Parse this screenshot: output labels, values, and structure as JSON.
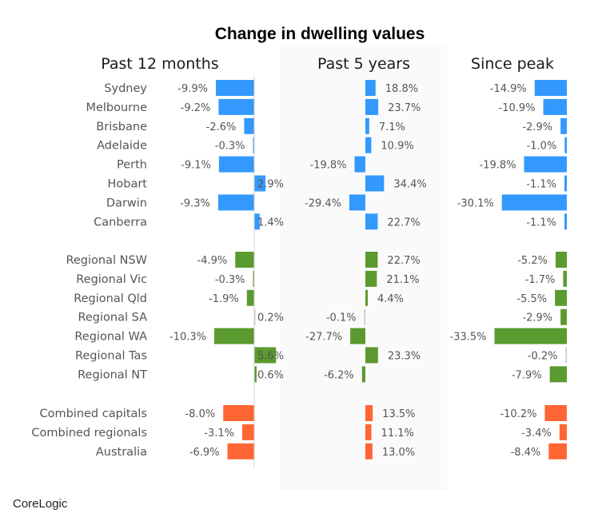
{
  "source_label": "CoreLogic",
  "chart_data": {
    "type": "bar",
    "orientation": "horizontal",
    "title": "Change in dwelling values",
    "unit": "%",
    "panels": [
      {
        "key": "past12",
        "title": "Past 12 months"
      },
      {
        "key": "past5",
        "title": "Past 5 years"
      },
      {
        "key": "peak",
        "title": "Since peak"
      }
    ],
    "colors": {
      "capitals": "#3399ff",
      "regional": "#5b9a2f",
      "aggregate": "#ff6633"
    },
    "groups": [
      {
        "key": "capitals",
        "rows": [
          {
            "label": "Sydney",
            "past12": -9.9,
            "past5": 18.8,
            "peak": -14.9
          },
          {
            "label": "Melbourne",
            "past12": -9.2,
            "past5": 23.7,
            "peak": -10.9
          },
          {
            "label": "Brisbane",
            "past12": -2.6,
            "past5": 7.1,
            "peak": -2.9
          },
          {
            "label": "Adelaide",
            "past12": -0.3,
            "past5": 10.9,
            "peak": -1.0
          },
          {
            "label": "Perth",
            "past12": -9.1,
            "past5": -19.8,
            "peak": -19.8
          },
          {
            "label": "Hobart",
            "past12": 2.9,
            "past5": 34.4,
            "peak": -1.1
          },
          {
            "label": "Darwin",
            "past12": -9.3,
            "past5": -29.4,
            "peak": -30.1
          },
          {
            "label": "Canberra",
            "past12": 1.4,
            "past5": 22.7,
            "peak": -1.1
          }
        ]
      },
      {
        "key": "regional",
        "rows": [
          {
            "label": "Regional NSW",
            "past12": -4.9,
            "past5": 22.7,
            "peak": -5.2
          },
          {
            "label": "Regional Vic",
            "past12": -0.3,
            "past5": 21.1,
            "peak": -1.7
          },
          {
            "label": "Regional Qld",
            "past12": -1.9,
            "past5": 4.4,
            "peak": -5.5
          },
          {
            "label": "Regional SA",
            "past12": 0.2,
            "past5": -0.1,
            "peak": -2.9
          },
          {
            "label": "Regional WA",
            "past12": -10.3,
            "past5": -27.7,
            "peak": -33.5
          },
          {
            "label": "Regional Tas",
            "past12": 5.6,
            "past5": 23.3,
            "peak": -0.2
          },
          {
            "label": "Regional NT",
            "past12": 0.6,
            "past5": -6.2,
            "peak": -7.9
          }
        ]
      },
      {
        "key": "aggregate",
        "rows": [
          {
            "label": "Combined capitals",
            "past12": -8.0,
            "past5": 13.5,
            "peak": -10.2
          },
          {
            "label": "Combined regionals",
            "past12": -3.1,
            "past5": 11.1,
            "peak": -3.4
          },
          {
            "label": "Australia",
            "past12": -6.9,
            "past5": 13.0,
            "peak": -8.4
          }
        ]
      }
    ]
  }
}
